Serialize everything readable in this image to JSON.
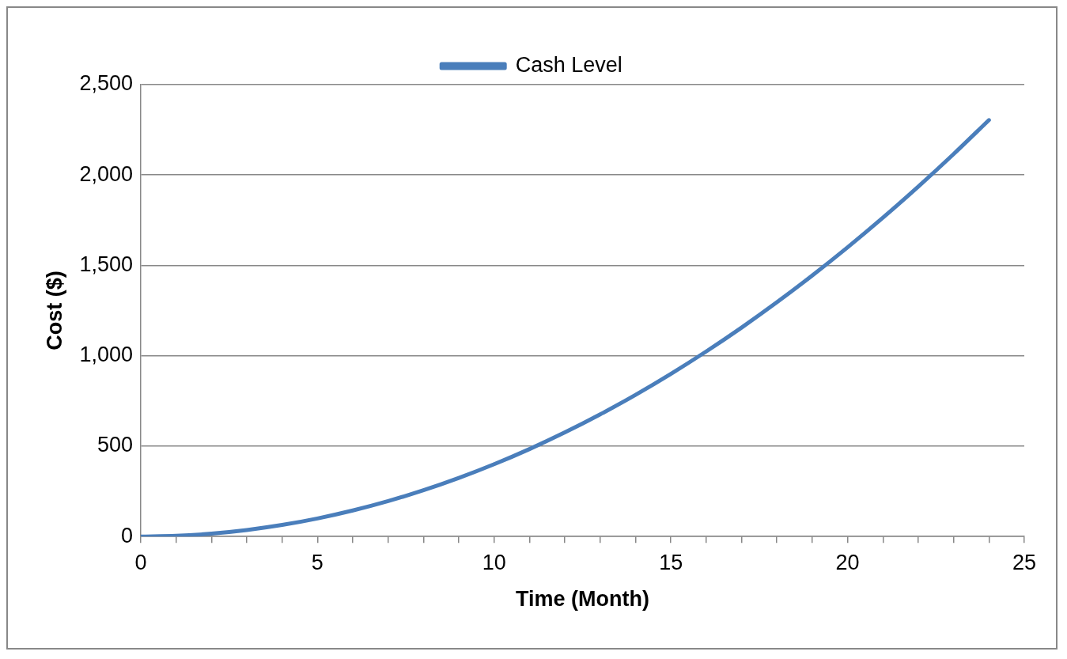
{
  "chart_data": {
    "type": "line",
    "xlabel": "Time (Month)",
    "ylabel": "Cost ($)",
    "x": [
      0,
      1,
      2,
      3,
      4,
      5,
      6,
      7,
      8,
      9,
      10,
      11,
      12,
      13,
      14,
      15,
      16,
      17,
      18,
      19,
      20,
      21,
      22,
      23,
      24
    ],
    "series": [
      {
        "name": "Cash Level",
        "color": "#4a7ebb",
        "values": [
          0,
          4,
          16,
          36,
          64,
          100,
          144,
          196,
          256,
          324,
          400,
          484,
          576,
          676,
          784,
          900,
          1024,
          1156,
          1296,
          1444,
          1600,
          1764,
          1936,
          2116,
          2304
        ]
      }
    ],
    "xlim": [
      0,
      25
    ],
    "xticks": [
      0,
      {
        "value": 1,
        "label": null
      },
      {
        "value": 2,
        "label": null
      },
      {
        "value": 3,
        "label": null
      },
      {
        "value": 4,
        "label": null
      },
      5,
      {
        "value": 6,
        "label": null
      },
      {
        "value": 7,
        "label": null
      },
      {
        "value": 8,
        "label": null
      },
      {
        "value": 9,
        "label": null
      },
      10,
      {
        "value": 11,
        "label": null
      },
      {
        "value": 12,
        "label": null
      },
      {
        "value": 13,
        "label": null
      },
      {
        "value": 14,
        "label": null
      },
      15,
      {
        "value": 16,
        "label": null
      },
      {
        "value": 17,
        "label": null
      },
      {
        "value": 18,
        "label": null
      },
      {
        "value": 19,
        "label": null
      },
      20,
      {
        "value": 21,
        "label": null
      },
      {
        "value": 22,
        "label": null
      },
      {
        "value": 23,
        "label": null
      },
      {
        "value": 24,
        "label": null
      },
      25
    ],
    "ylim": [
      0,
      2500
    ],
    "yticks": [
      0,
      500,
      {
        "value": 1000,
        "label": "1,000"
      },
      {
        "value": 1500,
        "label": "1,500"
      },
      {
        "value": 2000,
        "label": "2,000"
      },
      {
        "value": 2500,
        "label": "2,500"
      }
    ],
    "grid": "y",
    "legend": "top",
    "marker": "none",
    "line_style": "solid"
  }
}
